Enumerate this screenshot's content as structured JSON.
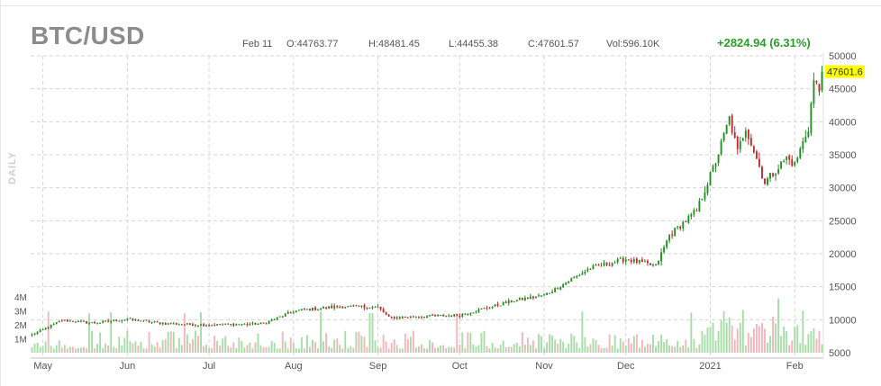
{
  "header": {
    "symbol": "BTC/USD",
    "date": "Feb 11",
    "open": "O:44763.77",
    "high": "H:48481.45",
    "low": "L:44455.38",
    "close": "C:47601.57",
    "volume": "Vol:596.10K",
    "change": "+2824.94 (6.31%)",
    "interval": "DAILY"
  },
  "colors": {
    "up": "#1f8f1f",
    "down": "#c0282d",
    "up_volume": "#a6dca6",
    "down_volume": "#f4b4bb",
    "grid": "#d6d6d6",
    "last_price_bg": "#ffff00",
    "change_text": "#2a9d2a"
  },
  "chart_data": {
    "type": "candlestick",
    "series_name": "",
    "x_labels": [
      "May",
      "Jun",
      "Jul",
      "Aug",
      "Sep",
      "Oct",
      "Nov",
      "Dec",
      "2021",
      "Feb"
    ],
    "y_ticks": [
      5000,
      10000,
      15000,
      20000,
      25000,
      30000,
      35000,
      40000,
      45000,
      50000
    ],
    "y_tick_labels": [
      "5000",
      "10000",
      "15000",
      "20000",
      "25000",
      "30000",
      "35000",
      "40000",
      "45000",
      "50000"
    ],
    "ylim": [
      5000,
      50000
    ],
    "volume_ticks": [
      "1M",
      "2M",
      "3M",
      "4M"
    ],
    "volume_ylim": [
      0,
      4000000
    ],
    "last_price_label": "47601.6",
    "last_price": 47601.57,
    "grid": true,
    "close_anchors": [
      {
        "date": "2020-04-27",
        "close": 7700
      },
      {
        "date": "2020-05-08",
        "close": 9900
      },
      {
        "date": "2020-05-20",
        "close": 9500
      },
      {
        "date": "2020-06-01",
        "close": 10100
      },
      {
        "date": "2020-06-15",
        "close": 9400
      },
      {
        "date": "2020-07-01",
        "close": 9200
      },
      {
        "date": "2020-07-21",
        "close": 9400
      },
      {
        "date": "2020-08-01",
        "close": 11300
      },
      {
        "date": "2020-08-17",
        "close": 12000
      },
      {
        "date": "2020-09-01",
        "close": 11900
      },
      {
        "date": "2020-09-05",
        "close": 10300
      },
      {
        "date": "2020-10-01",
        "close": 10700
      },
      {
        "date": "2020-10-21",
        "close": 12900
      },
      {
        "date": "2020-11-01",
        "close": 13700
      },
      {
        "date": "2020-11-18",
        "close": 17800
      },
      {
        "date": "2020-12-01",
        "close": 19200
      },
      {
        "date": "2020-12-12",
        "close": 18100
      },
      {
        "date": "2020-12-17",
        "close": 22800
      },
      {
        "date": "2020-12-27",
        "close": 26500
      },
      {
        "date": "2021-01-03",
        "close": 34000
      },
      {
        "date": "2021-01-08",
        "close": 40500
      },
      {
        "date": "2021-01-11",
        "close": 35400
      },
      {
        "date": "2021-01-14",
        "close": 39200
      },
      {
        "date": "2021-01-21",
        "close": 30800
      },
      {
        "date": "2021-01-29",
        "close": 34500
      },
      {
        "date": "2021-02-01",
        "close": 33500
      },
      {
        "date": "2021-02-06",
        "close": 39100
      },
      {
        "date": "2021-02-08",
        "close": 46200
      },
      {
        "date": "2021-02-10",
        "close": 44700
      },
      {
        "date": "2021-02-11",
        "close": 47601.57
      }
    ],
    "last_candle": {
      "date": "2021-02-11",
      "open": 44763.77,
      "high": 48481.45,
      "low": 44455.38,
      "close": 47601.57,
      "volume": 596100
    }
  }
}
